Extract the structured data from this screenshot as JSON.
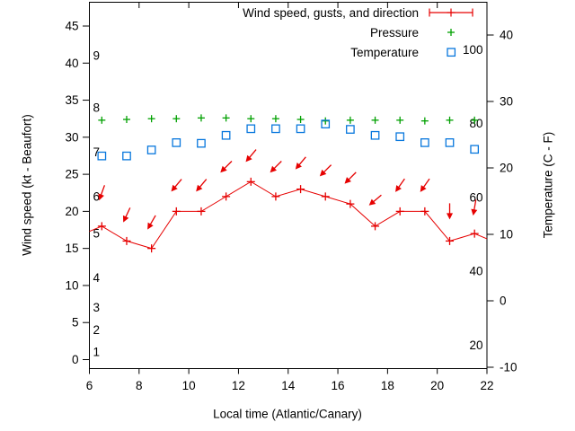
{
  "figure": {
    "background": "#ffffff"
  },
  "legend": {
    "wind": "Wind speed, gusts, and direction",
    "pressure": "Pressure",
    "temperature": "Temperature"
  },
  "axes": {
    "x_label": "Local time (Atlantic/Canary)",
    "y_left_label": "Wind speed (kt - Beaufort)",
    "y_right_label": "Temperature (C - F)"
  },
  "colors": {
    "wind": "#e60000",
    "pressure": "#00a000",
    "temperature": "#0877dd",
    "axis": "#000000"
  },
  "chart_data": {
    "type": "line",
    "title": "",
    "xlabel": "Local time (Atlantic/Canary)",
    "ylabel_left": "Wind speed (kt - Beaufort)",
    "ylabel_right": "Temperature (C - F)",
    "x_range": [
      6,
      22
    ],
    "y_left_range_kt": [
      0,
      45
    ],
    "y_right_range_c": [
      -10,
      40
    ],
    "x_ticks": [
      6,
      8,
      10,
      12,
      14,
      16,
      18,
      20,
      22
    ],
    "y_left_ticks_kt": [
      0,
      5,
      10,
      15,
      20,
      25,
      30,
      35,
      40,
      45
    ],
    "y_right_ticks_c": [
      -10,
      0,
      10,
      20,
      30,
      40
    ],
    "beaufort_inner_labels": [
      {
        "label": "1",
        "kt": 1
      },
      {
        "label": "2",
        "kt": 4
      },
      {
        "label": "3",
        "kt": 7
      },
      {
        "label": "4",
        "kt": 11
      },
      {
        "label": "5",
        "kt": 17
      },
      {
        "label": "6",
        "kt": 22
      },
      {
        "label": "7",
        "kt": 28
      },
      {
        "label": "8",
        "kt": 34
      },
      {
        "label": "9",
        "kt": 41
      }
    ],
    "fahrenheit_inner_labels": [
      20,
      40,
      60,
      80,
      100
    ],
    "x": [
      6.5,
      7.5,
      8.5,
      9.5,
      10.5,
      11.5,
      12.5,
      13.5,
      14.5,
      15.5,
      16.5,
      17.5,
      18.5,
      19.5,
      20.5,
      21.5
    ],
    "series": [
      {
        "name": "Wind speed (kt)",
        "style": "red line with plus markers",
        "values": [
          18,
          16,
          15,
          20,
          20,
          22,
          24,
          22,
          23,
          22,
          21,
          18,
          20,
          20,
          16,
          17
        ]
      },
      {
        "name": "Gusts with direction arrows (kt)",
        "style": "red arrows, pointing = direction wind blows toward",
        "values": [
          22.5,
          19.5,
          18.5,
          23.5,
          23.5,
          26,
          27.5,
          26,
          26.5,
          25.5,
          24.5,
          21.5,
          23.5,
          23.5,
          20,
          20.5
        ],
        "arrow_angles_deg_cw_from_down": [
          20,
          25,
          30,
          40,
          40,
          45,
          40,
          45,
          40,
          45,
          45,
          50,
          35,
          35,
          0,
          10
        ]
      },
      {
        "name": "Pressure (plotted in left-axis units, no numeric scale shown)",
        "style": "green plus markers",
        "values": [
          32.3,
          32.4,
          32.5,
          32.5,
          32.6,
          32.6,
          32.5,
          32.5,
          32.4,
          32.2,
          32.3,
          32.3,
          32.3,
          32.2,
          32.3,
          32.3
        ]
      },
      {
        "name": "Temperature (C)",
        "style": "blue open squares, right axis",
        "values": [
          21.8,
          21.8,
          22.7,
          23.8,
          23.7,
          24.9,
          25.9,
          25.9,
          25.9,
          26.6,
          25.8,
          24.9,
          24.7,
          23.8,
          23.8,
          22.8
        ]
      }
    ],
    "wind_line_edge_points": [
      {
        "x": 6.0,
        "kt": 17.3
      },
      {
        "x": 22.0,
        "kt": 16.3
      }
    ],
    "grid": false,
    "legend_position": "top-right-inside"
  }
}
